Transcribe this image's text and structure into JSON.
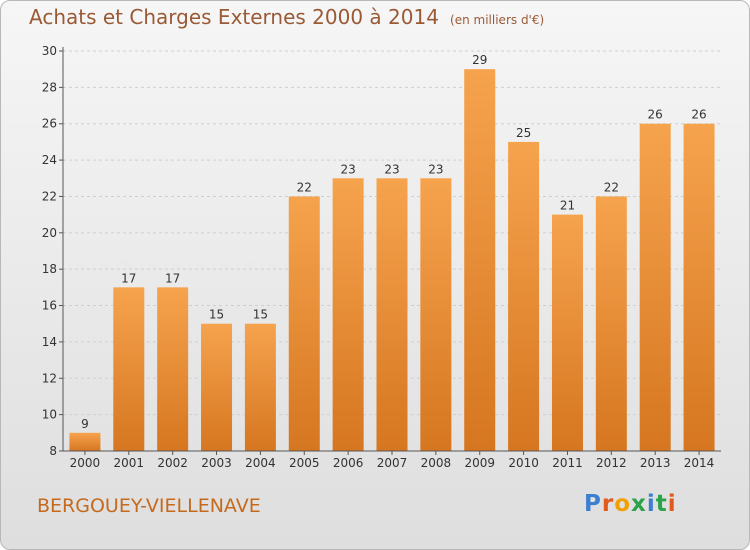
{
  "title": "Achats et Charges Externes 2000 à 2014",
  "unit_note": "(en milliers d'€)",
  "commune": "BERGOUEY-VIELLENAVE",
  "logo": {
    "text": "Proxiti",
    "colors": [
      "#3a7fd0",
      "#e05a1c",
      "#f0a000",
      "#2aa34a",
      "#3a7fd0",
      "#2aa34a",
      "#e05a1c"
    ]
  },
  "colors": {
    "bar_top": "#f6a34e",
    "bar_bottom": "#d67620",
    "grid": "#cfcfcf",
    "axis_text": "#333333",
    "title": "#9a5a36",
    "commune": "#c56a1c"
  },
  "chart_data": {
    "type": "bar",
    "categories": [
      "2000",
      "2001",
      "2002",
      "2003",
      "2004",
      "2005",
      "2006",
      "2007",
      "2008",
      "2009",
      "2010",
      "2011",
      "2012",
      "2013",
      "2014"
    ],
    "values": [
      9,
      17,
      17,
      15,
      15,
      22,
      23,
      23,
      23,
      29,
      25,
      21,
      22,
      26,
      26
    ],
    "ylim": [
      8,
      30
    ],
    "yticks": [
      8,
      10,
      12,
      14,
      16,
      18,
      20,
      22,
      24,
      26,
      28,
      30
    ],
    "grid": true,
    "data_labels": true
  }
}
